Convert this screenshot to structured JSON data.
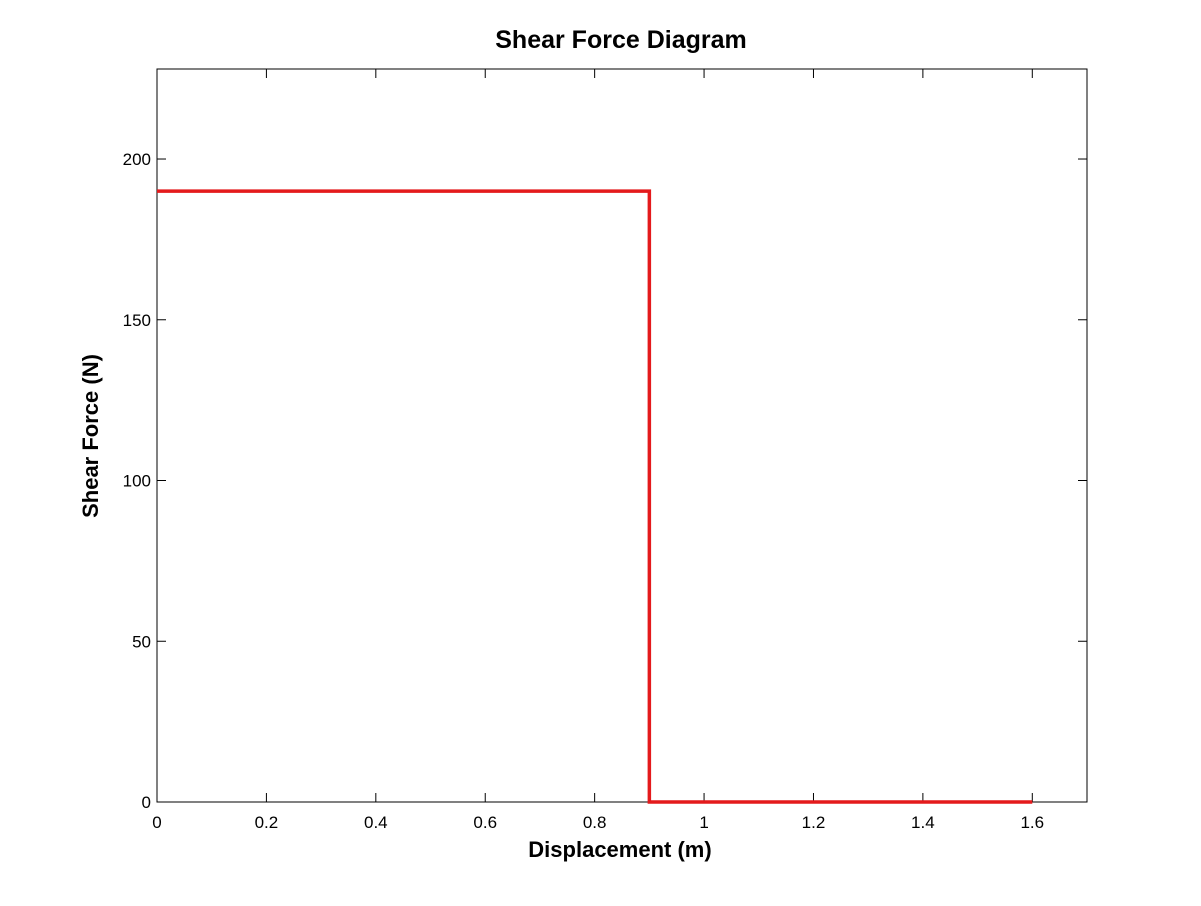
{
  "chart_data": {
    "type": "line",
    "title": "Shear Force Diagram",
    "xlabel": "Displacement (m)",
    "ylabel": "Shear Force (N)",
    "xlim": [
      0,
      1.7
    ],
    "ylim": [
      0,
      228
    ],
    "xticks": [
      0,
      0.2,
      0.4,
      0.6,
      0.8,
      1,
      1.2,
      1.4,
      1.6
    ],
    "xtick_labels": [
      "0",
      "0.2",
      "0.4",
      "0.6",
      "0.8",
      "1",
      "1.2",
      "1.4",
      "1.6"
    ],
    "yticks": [
      0,
      50,
      100,
      150,
      200
    ],
    "ytick_labels": [
      "0",
      "50",
      "100",
      "150",
      "200"
    ],
    "grid": false,
    "series": [
      {
        "color": "#e41a1c",
        "x": [
          0,
          0.9,
          0.9,
          1.6
        ],
        "y": [
          190,
          190,
          0,
          0
        ]
      }
    ]
  }
}
